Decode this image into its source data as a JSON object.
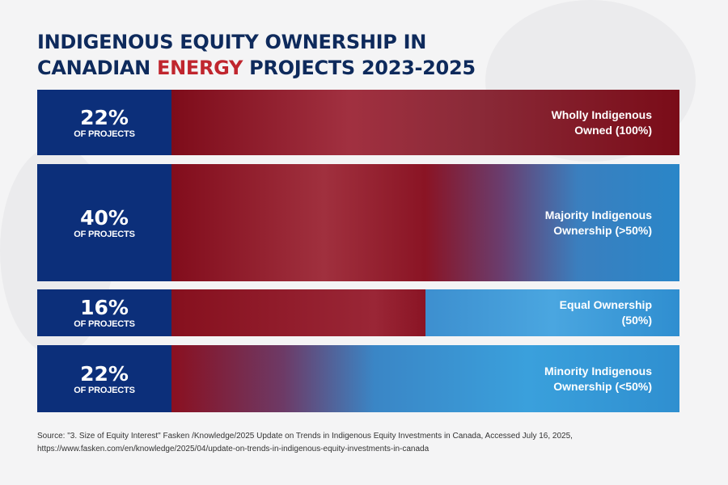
{
  "title": {
    "line1": "INDIGENOUS EQUITY OWNERSHIP IN",
    "line2_pre": "CANADIAN ",
    "line2_highlight": "ENERGY",
    "line2_post": " PROJECTS 2023-2025"
  },
  "colors": {
    "navy": "#0c2f7a",
    "red": "#8a0f1e",
    "blue": "#2a8fd0",
    "accent": "#c0262e"
  },
  "chart_data": {
    "type": "bar",
    "categories": [
      "Wholly Indigenous Owned (100%)",
      "Majority Indigenous Ownership (>50%)",
      "Equal Ownership (50%)",
      "Minority Indigenous Ownership (<50%)"
    ],
    "values": [
      22,
      40,
      16,
      22
    ],
    "unit": "%",
    "value_suffix": "OF PROJECTS"
  },
  "rows": [
    {
      "pct": "22%",
      "sub": "OF PROJECTS",
      "label1": "Wholly Indigenous",
      "label2": "Owned (100%)"
    },
    {
      "pct": "40%",
      "sub": "OF PROJECTS",
      "label1": "Majority Indigenous",
      "label2": "Ownership (>50%)"
    },
    {
      "pct": "16%",
      "sub": "OF PROJECTS",
      "label1": "Equal Ownership",
      "label2": "(50%)"
    },
    {
      "pct": "22%",
      "sub": "OF PROJECTS",
      "label1": "Minority Indigenous",
      "label2": "Ownership (<50%)"
    }
  ],
  "source": {
    "line1": "Source: \"3. Size of Equity Interest\" Fasken /Knowledge/2025 Update on Trends in Indigenous Equity Investments in Canada, Accessed July 16, 2025,",
    "line2": "https://www.fasken.com/en/knowledge/2025/04/update-on-trends-in-indigenous-equity-investments-in-canada"
  }
}
